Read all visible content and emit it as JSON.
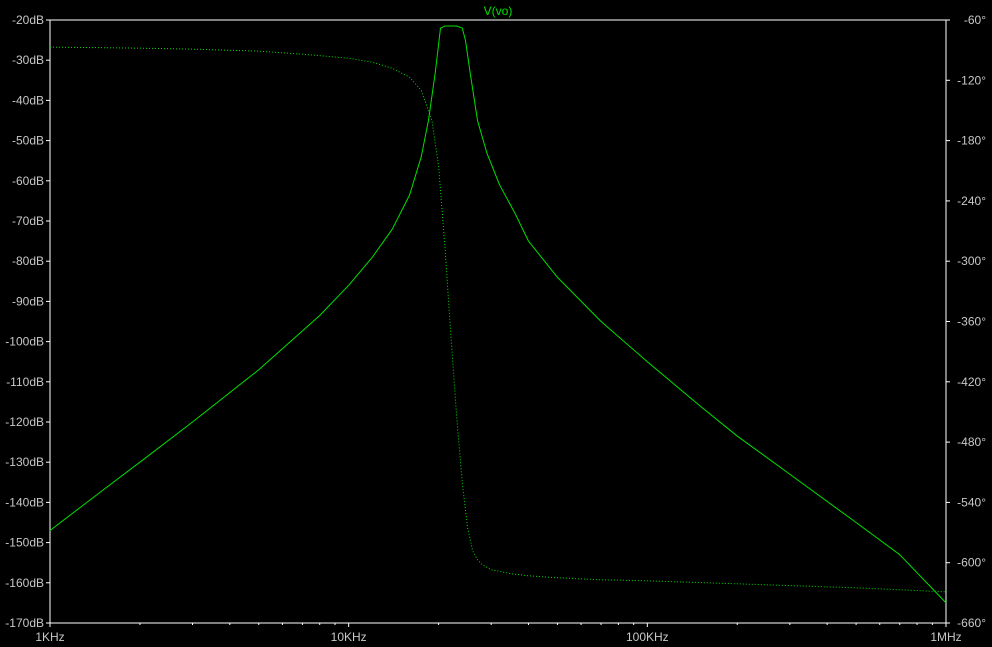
{
  "chart_data": {
    "type": "line",
    "title": "V(vo)",
    "x_scale": "log",
    "xlim": [
      1000,
      1000000
    ],
    "x_ticks": [
      {
        "value": 1000,
        "label": "1KHz"
      },
      {
        "value": 10000,
        "label": "10KHz"
      },
      {
        "value": 100000,
        "label": "100KHz"
      },
      {
        "value": 1000000,
        "label": "1MHz"
      }
    ],
    "ylim_left": [
      -170,
      -20
    ],
    "y_ticks_left": [
      {
        "value": -20,
        "label": "-20dB"
      },
      {
        "value": -30,
        "label": "-30dB"
      },
      {
        "value": -40,
        "label": "-40dB"
      },
      {
        "value": -50,
        "label": "-50dB"
      },
      {
        "value": -60,
        "label": "-60dB"
      },
      {
        "value": -70,
        "label": "-70dB"
      },
      {
        "value": -80,
        "label": "-80dB"
      },
      {
        "value": -90,
        "label": "-90dB"
      },
      {
        "value": -100,
        "label": "-100dB"
      },
      {
        "value": -110,
        "label": "-110dB"
      },
      {
        "value": -120,
        "label": "-120dB"
      },
      {
        "value": -130,
        "label": "-130dB"
      },
      {
        "value": -140,
        "label": "-140dB"
      },
      {
        "value": -150,
        "label": "-150dB"
      },
      {
        "value": -160,
        "label": "-160dB"
      },
      {
        "value": -170,
        "label": "-170dB"
      }
    ],
    "ylim_right": [
      -660,
      -60
    ],
    "y_ticks_right": [
      {
        "value": -60,
        "label": "-60°"
      },
      {
        "value": -120,
        "label": "-120°"
      },
      {
        "value": -180,
        "label": "-180°"
      },
      {
        "value": -240,
        "label": "-240°"
      },
      {
        "value": -300,
        "label": "-300°"
      },
      {
        "value": -360,
        "label": "-360°"
      },
      {
        "value": -420,
        "label": "-420°"
      },
      {
        "value": -480,
        "label": "-480°"
      },
      {
        "value": -540,
        "label": "-540°"
      },
      {
        "value": -600,
        "label": "-600°"
      },
      {
        "value": -660,
        "label": "-660°"
      }
    ],
    "grid": false,
    "series": [
      {
        "axis": "left",
        "style": "solid",
        "color": "#00e000",
        "x": [
          1000,
          1500,
          2000,
          3000,
          5000,
          8000,
          10000,
          12000,
          14000,
          16000,
          17500,
          18500,
          19500,
          20300,
          21000,
          22000,
          23000,
          24000,
          24600,
          25500,
          27000,
          29000,
          32000,
          36000,
          40000,
          50000,
          70000,
          100000,
          150000,
          200000,
          300000,
          500000,
          700000,
          1000000
        ],
        "values": [
          -147,
          -137,
          -130,
          -120,
          -107,
          -93.5,
          -86,
          -79,
          -72,
          -63.5,
          -54,
          -45,
          -33,
          -22,
          -21.5,
          -21.5,
          -21.5,
          -22,
          -25,
          -33,
          -45,
          -53,
          -61,
          -68,
          -75,
          -84,
          -95,
          -105,
          -116,
          -123.5,
          -133,
          -145,
          -153,
          -165
        ]
      },
      {
        "axis": "right",
        "style": "dotted",
        "color": "#00e000",
        "x": [
          1000,
          2000,
          3000,
          5000,
          7000,
          10000,
          12000,
          14000,
          16000,
          17500,
          19000,
          20000,
          21000,
          22000,
          23000,
          24000,
          25000,
          26000,
          27000,
          28000,
          30000,
          35000,
          40000,
          50000,
          70000,
          100000,
          200000,
          500000,
          1000000
        ],
        "values": [
          -87,
          -88,
          -89,
          -91,
          -94,
          -98,
          -102,
          -108,
          -117,
          -130,
          -160,
          -205,
          -285,
          -375,
          -455,
          -520,
          -565,
          -588,
          -597,
          -602,
          -607,
          -611,
          -613,
          -615,
          -617,
          -618,
          -621,
          -625,
          -629
        ]
      }
    ]
  }
}
